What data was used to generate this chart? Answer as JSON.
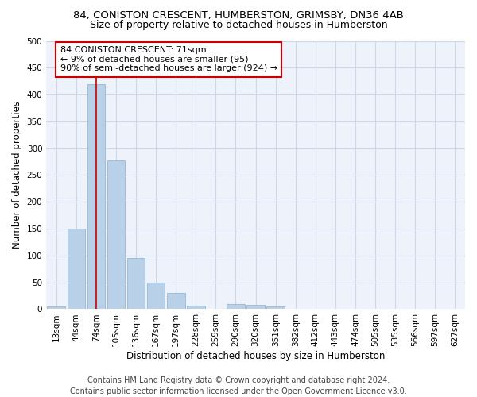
{
  "title_line1": "84, CONISTON CRESCENT, HUMBERSTON, GRIMSBY, DN36 4AB",
  "title_line2": "Size of property relative to detached houses in Humberston",
  "xlabel": "Distribution of detached houses by size in Humberston",
  "ylabel": "Number of detached properties",
  "bar_color": "#b8d0e8",
  "bar_edge_color": "#8ab0d0",
  "grid_color": "#ccd8ea",
  "background_color": "#eef2fa",
  "bin_labels": [
    "13sqm",
    "44sqm",
    "74sqm",
    "105sqm",
    "136sqm",
    "167sqm",
    "197sqm",
    "228sqm",
    "259sqm",
    "290sqm",
    "320sqm",
    "351sqm",
    "382sqm",
    "412sqm",
    "443sqm",
    "474sqm",
    "505sqm",
    "535sqm",
    "566sqm",
    "597sqm",
    "627sqm"
  ],
  "bar_values": [
    5,
    150,
    420,
    278,
    96,
    50,
    30,
    7,
    0,
    10,
    8,
    5,
    0,
    0,
    0,
    0,
    0,
    0,
    0,
    0,
    0
  ],
  "ylim": [
    0,
    500
  ],
  "yticks": [
    0,
    50,
    100,
    150,
    200,
    250,
    300,
    350,
    400,
    450,
    500
  ],
  "property_line_x": 2,
  "annotation_text_line1": "84 CONISTON CRESCENT: 71sqm",
  "annotation_text_line2": "← 9% of detached houses are smaller (95)",
  "annotation_text_line3": "90% of semi-detached houses are larger (924) →",
  "annotation_box_color": "#ffffff",
  "annotation_border_color": "#cc0000",
  "vline_color": "#cc0000",
  "footer_line1": "Contains HM Land Registry data © Crown copyright and database right 2024.",
  "footer_line2": "Contains public sector information licensed under the Open Government Licence v3.0.",
  "title_fontsize": 9.5,
  "subtitle_fontsize": 9,
  "axis_label_fontsize": 8.5,
  "tick_fontsize": 7.5,
  "annotation_fontsize": 8,
  "footer_fontsize": 7
}
